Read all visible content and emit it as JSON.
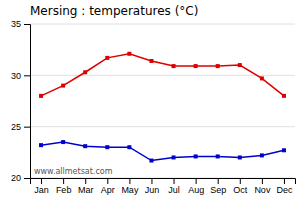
{
  "chart_data": {
    "type": "line",
    "title": "Mersing : temperatures (°C)",
    "categories": [
      "Jan",
      "Feb",
      "Mar",
      "Apr",
      "May",
      "Jun",
      "Jul",
      "Aug",
      "Sep",
      "Oct",
      "Nov",
      "Dec"
    ],
    "series": [
      {
        "color": "#dd0000",
        "marker": "square",
        "values": [
          28.0,
          29.0,
          30.3,
          31.7,
          32.1,
          31.4,
          30.9,
          30.9,
          30.9,
          31.0,
          29.7,
          28.0
        ]
      },
      {
        "color": "#0000cc",
        "marker": "square",
        "values": [
          23.2,
          23.5,
          23.1,
          23.0,
          23.0,
          21.7,
          22.0,
          22.1,
          22.1,
          22.0,
          22.2,
          22.7
        ]
      }
    ],
    "ylim": [
      20,
      35
    ],
    "yticks": [
      20,
      25,
      30,
      35
    ],
    "grid": true,
    "annotations": [
      "www.allmetsat.com"
    ]
  }
}
